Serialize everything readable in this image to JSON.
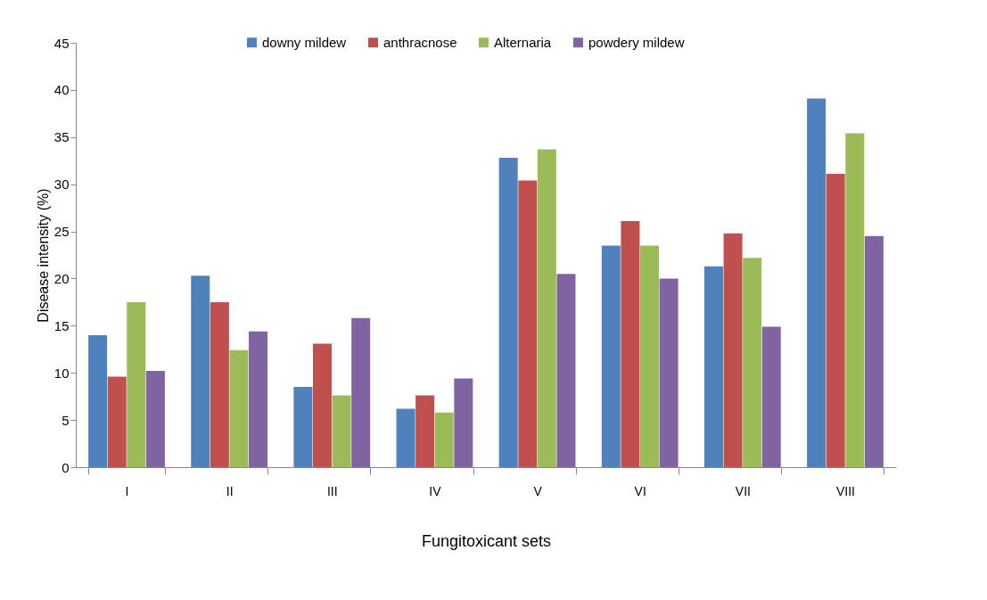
{
  "chart_data": {
    "type": "bar",
    "xlabel": "Fungitoxicant sets",
    "ylabel": "Disease intensity (%)",
    "categories": [
      "I",
      "II",
      "III",
      "IV",
      "V",
      "VI",
      "VII",
      "VIII"
    ],
    "series": [
      {
        "name": "downy mildew",
        "color": "#4f81bd",
        "values": [
          14,
          20.3,
          8.5,
          6.2,
          32.8,
          23.5,
          21.3,
          39.1
        ]
      },
      {
        "name": "anthracnose",
        "color": "#c0504d",
        "values": [
          9.6,
          17.5,
          13.1,
          7.6,
          30.4,
          26.1,
          24.8,
          31.1
        ]
      },
      {
        "name": "Alternaria",
        "color": "#9bbb59",
        "values": [
          17.5,
          12.4,
          7.6,
          5.8,
          33.7,
          23.5,
          22.2,
          35.4
        ]
      },
      {
        "name": "powdery mildew",
        "color": "#8064a2",
        "values": [
          10.2,
          14.4,
          15.8,
          9.4,
          20.5,
          20.0,
          14.9,
          24.5
        ]
      }
    ],
    "ylim": [
      0,
      45
    ],
    "yticks": [
      0,
      5,
      10,
      15,
      20,
      25,
      30,
      35,
      40,
      45
    ],
    "grid": false,
    "legend": "top"
  }
}
